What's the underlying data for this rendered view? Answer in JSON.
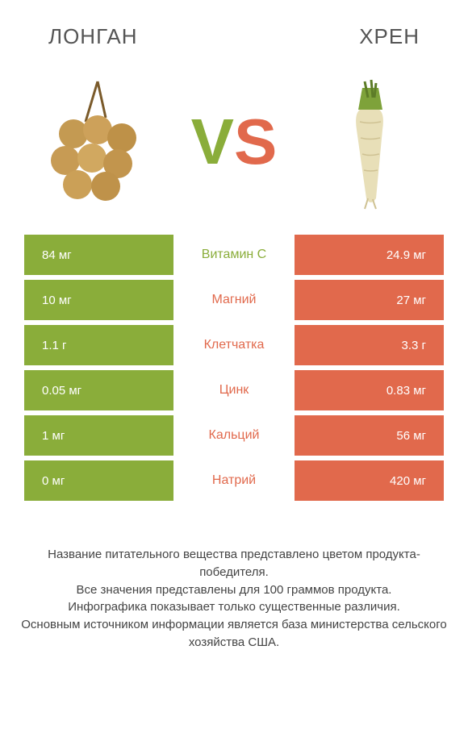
{
  "header": {
    "left_title": "ЛОНГАН",
    "right_title": "ХРЕН"
  },
  "vs": {
    "v": "V",
    "s": "S"
  },
  "colors": {
    "left_bg": "#8aad3a",
    "right_bg": "#e1694c",
    "mid_left_text": "#8aad3a",
    "mid_right_text": "#e1694c"
  },
  "rows": [
    {
      "left": "84 мг",
      "mid": "Витамин С",
      "right": "24.9 мг",
      "mid_color": "left"
    },
    {
      "left": "10 мг",
      "mid": "Магний",
      "right": "27 мг",
      "mid_color": "right"
    },
    {
      "left": "1.1 г",
      "mid": "Клетчатка",
      "right": "3.3 г",
      "mid_color": "right"
    },
    {
      "left": "0.05 мг",
      "mid": "Цинк",
      "right": "0.83 мг",
      "mid_color": "right"
    },
    {
      "left": "1 мг",
      "mid": "Кальций",
      "right": "56 мг",
      "mid_color": "right"
    },
    {
      "left": "0 мг",
      "mid": "Натрий",
      "right": "420 мг",
      "mid_color": "right"
    }
  ],
  "footer": {
    "line1": "Название питательного вещества представлено цветом продукта-победителя.",
    "line2": "Все значения представлены для 100 граммов продукта.",
    "line3": "Инфографика показывает только существенные различия.",
    "line4": "Основным источником информации является база министерства сельского хозяйства США."
  }
}
